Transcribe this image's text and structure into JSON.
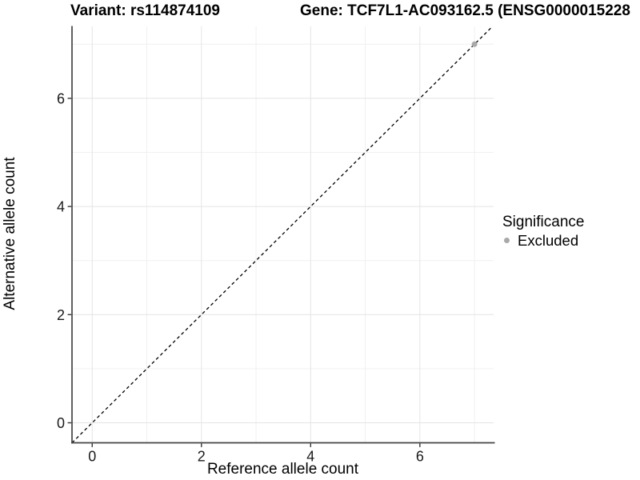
{
  "titles": {
    "variant": "Variant: rs114874109",
    "gene": "Gene: TCF7L1-AC093162.5 (ENSG0000015228"
  },
  "chart_data": {
    "type": "scatter",
    "title_left": "Variant: rs114874109",
    "title_right": "Gene: TCF7L1-AC093162.5 (ENSG0000015228",
    "xlabel": "Reference allele count",
    "ylabel": "Alternative allele count",
    "xlim": [
      -0.37,
      7.35
    ],
    "ylim": [
      -0.37,
      7.33
    ],
    "x_ticks": [
      0,
      2,
      4,
      6
    ],
    "y_ticks": [
      0,
      2,
      4,
      6
    ],
    "x_minor_ticks": [
      1,
      3,
      5,
      7
    ],
    "y_minor_ticks": [
      1,
      3,
      5,
      7
    ],
    "grid": true,
    "reference_line": {
      "type": "identity",
      "style": "dashed",
      "color": "#000000"
    },
    "series": [
      {
        "name": "Excluded",
        "color": "#a9a9a9",
        "points": [
          {
            "x": 7,
            "y": 7
          }
        ]
      }
    ],
    "legend": {
      "title": "Significance",
      "position": "right",
      "entries": [
        {
          "label": "Excluded",
          "color": "#a9a9a9"
        }
      ]
    }
  },
  "style_colors": {
    "axis_line": "#444444",
    "tick_label": "#1a1a1a",
    "grid_major": "#e4e4e4",
    "grid_minor": "#f0f0f0",
    "point": "#a9a9a9"
  }
}
